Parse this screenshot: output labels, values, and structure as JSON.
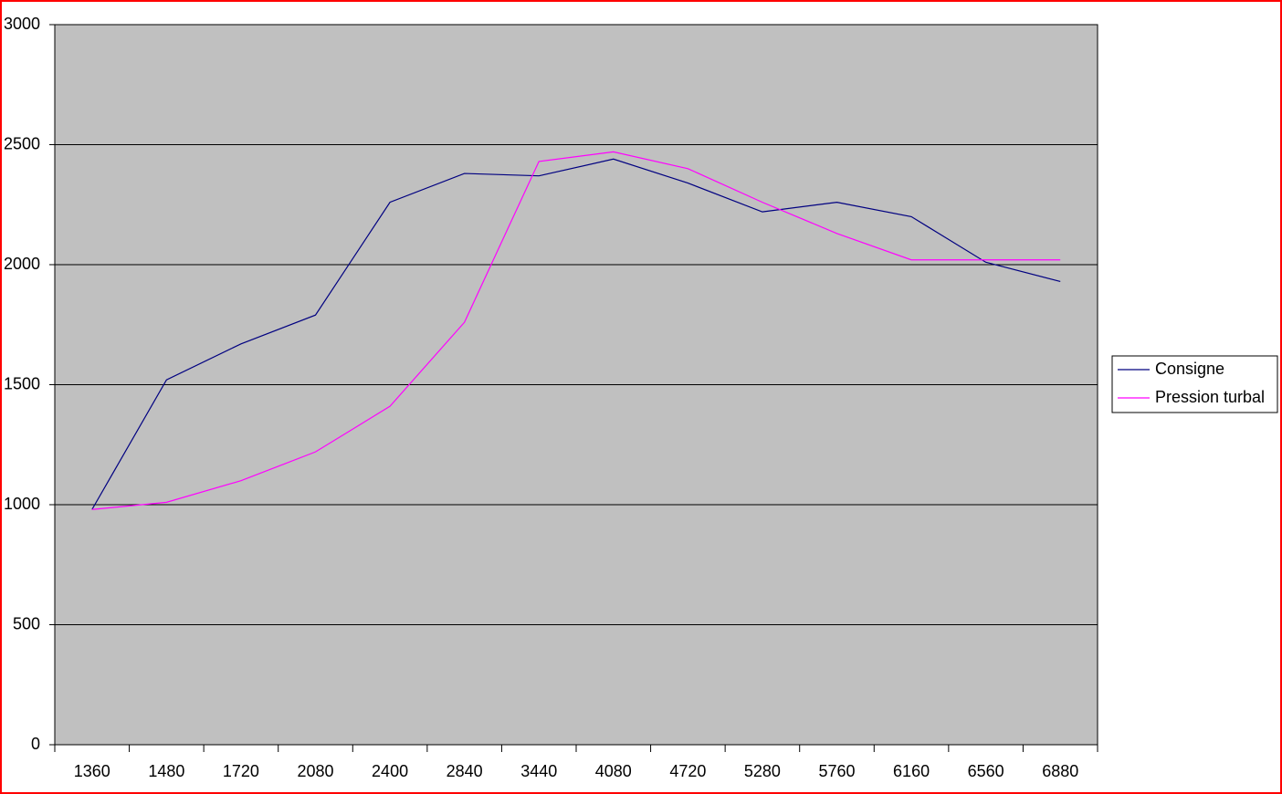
{
  "chart_data": {
    "type": "line",
    "categories": [
      "1360",
      "1480",
      "1720",
      "2080",
      "2400",
      "2840",
      "3440",
      "4080",
      "4720",
      "5280",
      "5760",
      "6160",
      "6560",
      "6880"
    ],
    "series": [
      {
        "name": "Consigne",
        "color": "#000080",
        "values": [
          980,
          1520,
          1670,
          1790,
          2260,
          2380,
          2370,
          2440,
          2340,
          2220,
          2260,
          2200,
          2010,
          1930
        ]
      },
      {
        "name": "Pression turbal",
        "color": "#ff00ff",
        "values": [
          980,
          1010,
          1100,
          1220,
          1410,
          1760,
          2430,
          2470,
          2400,
          2260,
          2130,
          2020,
          2020,
          2020
        ]
      }
    ],
    "ylim": [
      0,
      3000
    ],
    "yticks": [
      0,
      500,
      1000,
      1500,
      2000,
      2500,
      3000
    ],
    "grid": true,
    "legend": "right",
    "plot_background": "#c0c0c0"
  }
}
